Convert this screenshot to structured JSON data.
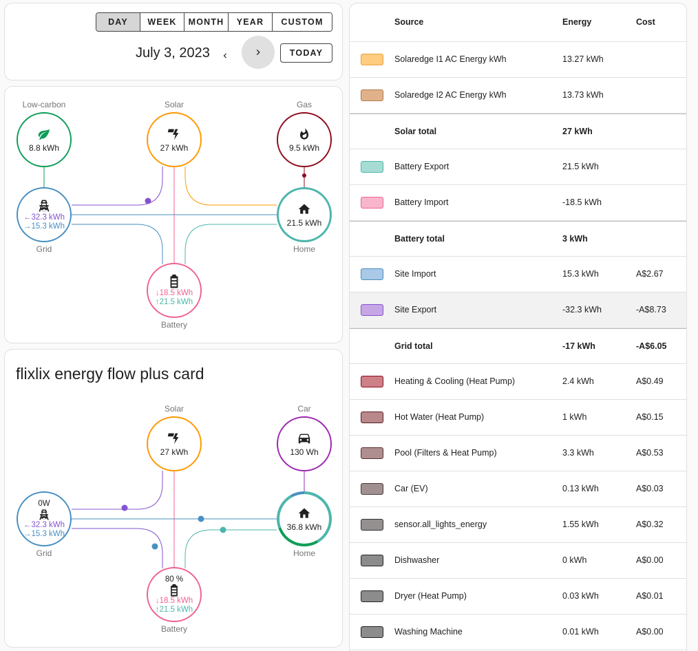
{
  "date_picker": {
    "periods": [
      "DAY",
      "WEEK",
      "MONTH",
      "YEAR",
      "CUSTOM"
    ],
    "active_period": "DAY",
    "date": "July 3, 2023",
    "prev_icon": "chevron-left-icon",
    "next_icon": "chevron-right-icon",
    "today_label": "TODAY"
  },
  "flow1": {
    "low_carbon": {
      "label": "Low-carbon",
      "value": "8.8 kWh",
      "icon": "leaf-icon",
      "color": "#0f9d58"
    },
    "solar": {
      "label": "Solar",
      "value": "27 kWh",
      "icon": "solar-power-icon",
      "color": "#ff9800"
    },
    "gas": {
      "label": "Gas",
      "value": "9.5 kWh",
      "icon": "fire-icon",
      "color": "#8e0c1d"
    },
    "grid": {
      "label": "Grid",
      "export": "32.3 kWh",
      "import": "15.3 kWh",
      "icon": "transmission-tower-icon",
      "color": "#488fc2"
    },
    "home": {
      "label": "Home",
      "value": "21.5 kWh",
      "icon": "home-icon",
      "color": "#4db6ac"
    },
    "battery": {
      "label": "Battery",
      "in": "18.5 kWh",
      "out": "21.5 kWh",
      "icon": "battery-icon",
      "color": "#f06292"
    }
  },
  "flow2": {
    "title": "flixlix energy flow plus card",
    "solar": {
      "label": "Solar",
      "value": "27 kWh",
      "icon": "solar-power-icon"
    },
    "car": {
      "label": "Car",
      "value": "130 Wh",
      "icon": "car-icon",
      "color": "#9c27b0"
    },
    "grid": {
      "label": "Grid",
      "power": "0W",
      "export": "32.3 kWh",
      "import": "15.3 kWh",
      "icon": "transmission-tower-icon"
    },
    "home": {
      "label": "Home",
      "value": "36.8 kWh",
      "icon": "home-icon"
    },
    "battery": {
      "label": "Battery",
      "soc": "80 %",
      "in": "18.5 kWh",
      "out": "21.5 kWh",
      "icon": "battery-icon"
    }
  },
  "table": {
    "headers": {
      "source": "Source",
      "energy": "Energy",
      "cost": "Cost"
    },
    "rows": [
      {
        "color": "#ffcc80",
        "border": "#e6a040",
        "source": "Solaredge I1 AC Energy kWh",
        "energy": "13.27 kWh",
        "cost": ""
      },
      {
        "color": "#e0b18a",
        "border": "#b07a50",
        "source": "Solaredge I2 AC Energy kWh",
        "energy": "13.73 kWh",
        "cost": ""
      },
      {
        "total": true,
        "source": "Solar total",
        "energy": "27 kWh",
        "cost": ""
      },
      {
        "color": "#a6dcd4",
        "border": "#4db6ac",
        "source": "Battery Export",
        "energy": "21.5 kWh",
        "cost": ""
      },
      {
        "color": "#f8b6cc",
        "border": "#f06292",
        "source": "Battery Import",
        "energy": "-18.5 kWh",
        "cost": ""
      },
      {
        "total": true,
        "source": "Battery total",
        "energy": "3 kWh",
        "cost": ""
      },
      {
        "color": "#a9c9e6",
        "border": "#488fc2",
        "source": "Site Import",
        "energy": "15.3 kWh",
        "cost": "A$2.67"
      },
      {
        "color": "#c7a6e6",
        "border": "#8353d1",
        "source": "Site Export",
        "energy": "-32.3 kWh",
        "cost": "-A$8.73",
        "highlight": true
      },
      {
        "total": true,
        "source": "Grid total",
        "energy": "-17 kWh",
        "cost": "-A$6.05"
      },
      {
        "color": "#cc8088",
        "border": "#8e0c1d",
        "source": "Heating & Cooling (Heat Pump)",
        "energy": "2.4 kWh",
        "cost": "A$0.49"
      },
      {
        "color": "#b8888a",
        "border": "#5a1e24",
        "source": "Hot Water (Heat Pump)",
        "energy": "1 kWh",
        "cost": "A$0.15"
      },
      {
        "color": "#ae8e8e",
        "border": "#5a3030",
        "source": "Pool (Filters & Heat Pump)",
        "energy": "3.3 kWh",
        "cost": "A$0.53"
      },
      {
        "color": "#a09090",
        "border": "#4a3a3a",
        "source": "Car (EV)",
        "energy": "0.13 kWh",
        "cost": "A$0.03"
      },
      {
        "color": "#949090",
        "border": "#333333",
        "source": "sensor.all_lights_energy",
        "energy": "1.55 kWh",
        "cost": "A$0.32"
      },
      {
        "color": "#8c8c8c",
        "border": "#222222",
        "source": "Dishwasher",
        "energy": "0 kWh",
        "cost": "A$0.00"
      },
      {
        "color": "#8c8c8c",
        "border": "#222222",
        "source": "Dryer (Heat Pump)",
        "energy": "0.03 kWh",
        "cost": "A$0.01"
      },
      {
        "color": "#8c8c8c",
        "border": "#222222",
        "source": "Washing Machine",
        "energy": "0.01 kWh",
        "cost": "A$0.00"
      }
    ]
  }
}
